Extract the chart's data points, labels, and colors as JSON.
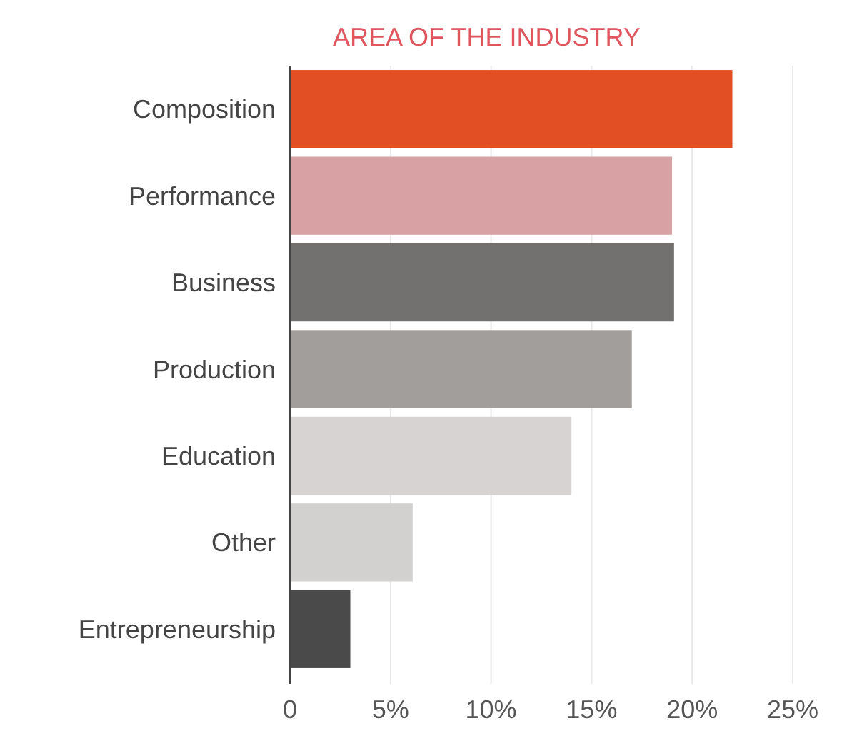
{
  "chart_data": {
    "type": "bar",
    "orientation": "horizontal",
    "title": "AREA OF THE INDUSTRY",
    "categories": [
      "Composition",
      "Performance",
      "Business",
      "Production",
      "Education",
      "Other",
      "Entrepreneurship"
    ],
    "values": [
      22,
      19,
      19.1,
      17,
      14,
      6.1,
      3
    ],
    "colors": [
      "#e34f24",
      "#d8a1a3",
      "#737170",
      "#a19e9c",
      "#d6d3d2",
      "#d3d1d0",
      "#4a4a4a"
    ],
    "xlim": [
      0,
      25
    ],
    "xticks": [
      0,
      {
        "value": 5,
        "label": "5%"
      },
      {
        "value": 10,
        "label": "10%"
      },
      {
        "value": 15,
        "label": "15%"
      },
      {
        "value": 20,
        "label": "20%"
      },
      {
        "value": 25,
        "label": "25%"
      }
    ],
    "grid": "x"
  }
}
